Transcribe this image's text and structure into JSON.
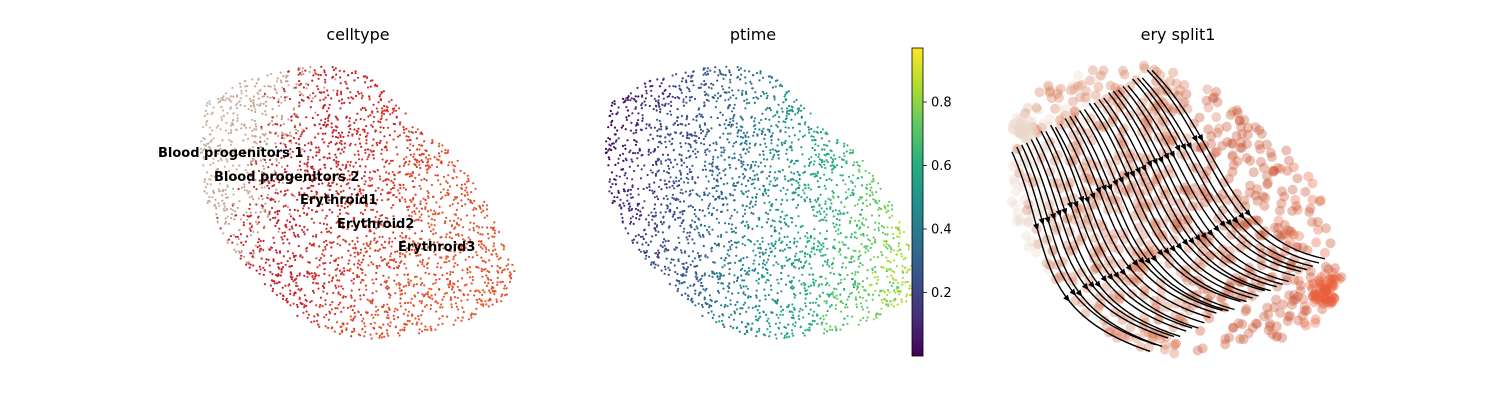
{
  "chart_data": [
    {
      "type": "scatter",
      "title": "celltype",
      "categories": [
        "Blood progenitors 1",
        "Blood progenitors 2",
        "Erythroid1",
        "Erythroid2",
        "Erythroid3"
      ],
      "category_colors": {
        "Blood progenitors 1": "#c9b3a4",
        "Blood progenitors 2": "#c8a291",
        "Erythroid1": "#c6222c",
        "Erythroid2": "#d9372a",
        "Erythroid3": "#e4532a"
      },
      "labels_on_data": true,
      "axes_visible": false
    },
    {
      "type": "scatter",
      "title": "ptime",
      "colormap": "viridis",
      "colorbar": {
        "min": 0.0,
        "max": 0.97,
        "ticks": [
          0.2,
          0.4,
          0.6,
          0.8
        ],
        "tick_labels": [
          "0.2",
          "0.4",
          "0.6",
          "0.8"
        ]
      },
      "axes_visible": false
    },
    {
      "type": "scatter",
      "title": "ery split1",
      "overlay": "streamlines with arrows",
      "point_colors": [
        "#ead8cb",
        "#d67a5a",
        "#c8502d",
        "#e8603c"
      ],
      "line_color": "#000000",
      "axes_visible": false
    }
  ]
}
